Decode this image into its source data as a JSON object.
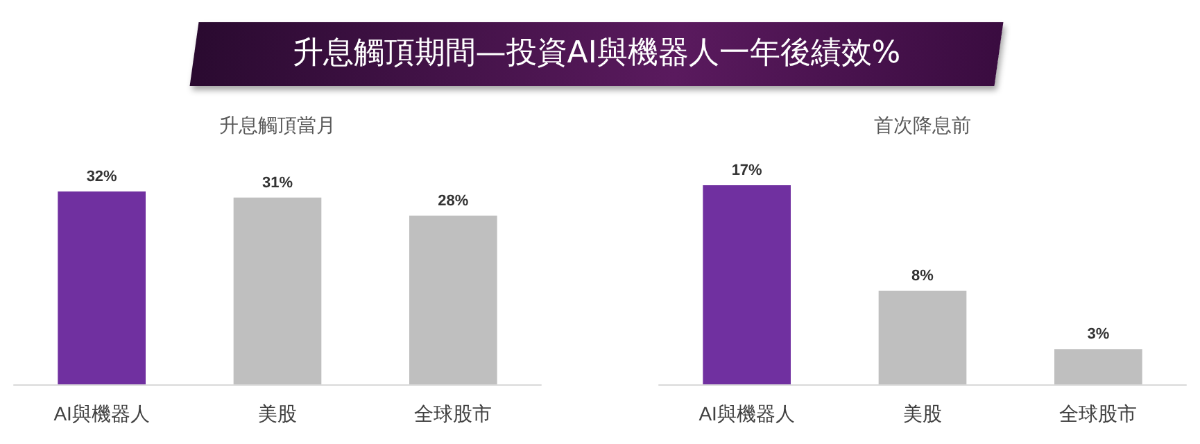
{
  "chart_data": [
    {
      "type": "bar",
      "title": "升息觸頂期間—投資AI與機器人一年後績效%",
      "subtitle": "升息觸頂當月",
      "categories": [
        "AI與機器人",
        "美股",
        "全球股市"
      ],
      "values": [
        32,
        31,
        28
      ],
      "colors": [
        "#7030a0",
        "#bfbfbf",
        "#bfbfbf"
      ],
      "value_labels": [
        "32%",
        "31%",
        "28%"
      ]
    },
    {
      "type": "bar",
      "subtitle": "首次降息前",
      "categories": [
        "AI與機器人",
        "美股",
        "全球股市"
      ],
      "values": [
        17,
        8,
        3
      ],
      "colors": [
        "#7030a0",
        "#bfbfbf",
        "#bfbfbf"
      ],
      "value_labels": [
        "17%",
        "8%",
        "3%"
      ]
    }
  ]
}
